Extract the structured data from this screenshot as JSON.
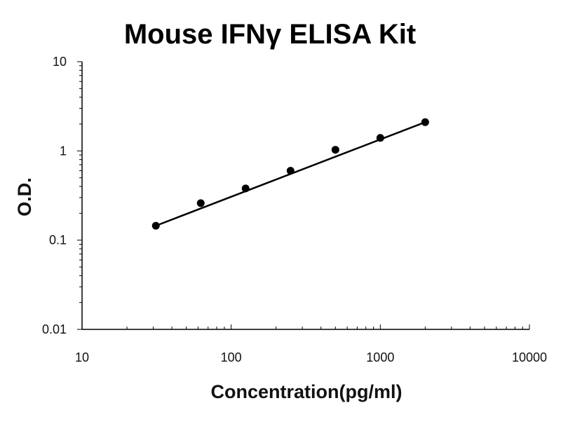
{
  "chart_data": {
    "type": "scatter",
    "title": "Mouse IFNγ ELISA Kit",
    "xlabel": "Concentration(pg/ml)",
    "ylabel": "O.D.",
    "x_scale": "log",
    "y_scale": "log",
    "xlim": [
      10,
      10000
    ],
    "ylim": [
      0.01,
      10
    ],
    "x_ticks": [
      "10",
      "100",
      "1000",
      "10000"
    ],
    "y_ticks": [
      "0.01",
      "0.1",
      "1",
      "10"
    ],
    "grid": false,
    "legend": "none",
    "series": [
      {
        "x": [
          31.25,
          62.5,
          125,
          250,
          500,
          1000,
          2000
        ],
        "y": [
          0.145,
          0.26,
          0.38,
          0.6,
          1.03,
          1.4,
          2.1
        ]
      }
    ],
    "fit_line": {
      "x": [
        31.25,
        2000
      ],
      "y": [
        0.145,
        2.1
      ]
    },
    "colors": {
      "point": "#000000",
      "line": "#000000",
      "axis": "#000000"
    }
  }
}
